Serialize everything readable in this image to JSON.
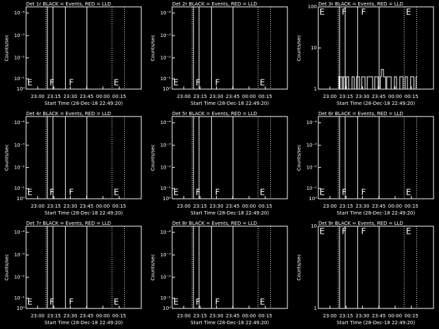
{
  "chart_data": [
    {
      "type": "line",
      "title": "Det 1r BLACK = Events, RED = LLD",
      "ylabel": "Counts/sec",
      "xlabel": "Start Time (28-Dec-18 22:49:20)",
      "xlim": [
        0,
        106
      ],
      "xticks": [
        {
          "value": 10.67,
          "label": "23:00"
        },
        {
          "value": 25.67,
          "label": "23:15"
        },
        {
          "value": 40.67,
          "label": "23:30"
        },
        {
          "value": 55.67,
          "label": "23:45"
        },
        {
          "value": 70.67,
          "label": "00:00"
        },
        {
          "value": 85.67,
          "label": "00:15"
        }
      ],
      "ylim": [
        0,
        1
      ],
      "yticks": [
        {
          "value": 0,
          "label": "10⁰"
        },
        {
          "value": 0.125,
          "label": "10⁻¹"
        },
        {
          "value": 0.38,
          "label": "10⁻²"
        },
        {
          "value": 0.65,
          "label": "10⁻³"
        },
        {
          "value": 0.925,
          "label": "10⁻⁴"
        }
      ],
      "log": false,
      "annotation_row": "bottom",
      "vlines": [
        {
          "x": 18.3,
          "style": "dotted"
        },
        {
          "x": 19.6,
          "style": "solid"
        },
        {
          "x": 24.7,
          "style": "solid"
        },
        {
          "x": 36.2,
          "style": "solid"
        },
        {
          "x": 56,
          "style": "solid"
        },
        {
          "x": 79,
          "style": "dotted"
        },
        {
          "x": 90.5,
          "style": "dotted"
        }
      ],
      "annotations": [
        {
          "x": 0.5,
          "text": "E"
        },
        {
          "x": 21,
          "text": "F"
        },
        {
          "x": 38.8,
          "text": "F"
        },
        {
          "x": 80,
          "text": "E"
        }
      ]
    },
    {
      "type": "line",
      "title": "Det 2r BLACK = Events, RED = LLD",
      "ylabel": "Counts/sec",
      "xlabel": "Start Time (28-Dec-18 22:49:20)",
      "xlim": [
        0,
        106
      ],
      "xticks": [
        {
          "value": 10.67,
          "label": "23:00"
        },
        {
          "value": 25.67,
          "label": "23:15"
        },
        {
          "value": 40.67,
          "label": "23:30"
        },
        {
          "value": 55.67,
          "label": "23:45"
        },
        {
          "value": 70.67,
          "label": "00:00"
        },
        {
          "value": 85.67,
          "label": "00:15"
        }
      ],
      "ylim": [
        0,
        1
      ],
      "yticks": [
        {
          "value": 0,
          "label": "10⁰"
        },
        {
          "value": 0.125,
          "label": "10⁻¹"
        },
        {
          "value": 0.38,
          "label": "10⁻²"
        },
        {
          "value": 0.65,
          "label": "10⁻³"
        },
        {
          "value": 0.925,
          "label": "10⁻⁴"
        }
      ],
      "log": false,
      "annotation_row": "bottom",
      "vlines": [
        {
          "x": 18.3,
          "style": "dotted"
        },
        {
          "x": 19.6,
          "style": "solid"
        },
        {
          "x": 24.7,
          "style": "solid"
        },
        {
          "x": 36.2,
          "style": "solid"
        },
        {
          "x": 56,
          "style": "solid"
        },
        {
          "x": 79,
          "style": "dotted"
        },
        {
          "x": 90.5,
          "style": "dotted"
        }
      ],
      "annotations": [
        {
          "x": 0.5,
          "text": "E"
        },
        {
          "x": 21,
          "text": "F"
        },
        {
          "x": 38.8,
          "text": "F"
        },
        {
          "x": 80,
          "text": "E"
        }
      ]
    },
    {
      "type": "line",
      "title": "Det 3r BLACK = Events, RED = LLD",
      "ylabel": "Counts/sec",
      "xlabel": "Start Time (28-Dec-18 22:49:20)",
      "xlim": [
        0,
        106
      ],
      "xticks": [
        {
          "value": 10.67,
          "label": "23:00"
        },
        {
          "value": 25.67,
          "label": "23:15"
        },
        {
          "value": 40.67,
          "label": "23:30"
        },
        {
          "value": 55.67,
          "label": "23:45"
        },
        {
          "value": 70.67,
          "label": "00:00"
        },
        {
          "value": 85.67,
          "label": "00:15"
        }
      ],
      "ylim": [
        1,
        100
      ],
      "yticks": [
        1,
        10,
        100
      ],
      "log": true,
      "annotation_row": "top",
      "vlines": [
        {
          "x": 18.3,
          "style": "dotted"
        },
        {
          "x": 19.6,
          "style": "solid"
        },
        {
          "x": 24.7,
          "style": "solid"
        },
        {
          "x": 36.2,
          "style": "solid"
        },
        {
          "x": 56,
          "style": "solid"
        },
        {
          "x": 79,
          "style": "dotted"
        },
        {
          "x": 90.5,
          "style": "dotted"
        }
      ],
      "annotations": [
        {
          "x": 0.5,
          "text": "E"
        },
        {
          "x": 21,
          "text": "F"
        },
        {
          "x": 38.8,
          "text": "F"
        },
        {
          "x": 80,
          "text": "E"
        }
      ],
      "series": [
        {
          "color": "#ffffff",
          "x": [
            18,
            19,
            20,
            22,
            23,
            25,
            26,
            28,
            30,
            31,
            33,
            35,
            36,
            38,
            40,
            42,
            43,
            45,
            47,
            48,
            50,
            52,
            53,
            55,
            57,
            58,
            60,
            62,
            63,
            65,
            67,
            70,
            72,
            75,
            78,
            80,
            82,
            85,
            88,
            90
          ],
          "values": [
            2,
            1,
            2,
            1,
            2,
            1,
            2,
            1,
            1,
            2,
            1,
            2,
            2,
            1,
            2,
            2,
            1,
            2,
            2,
            2,
            1,
            2,
            2,
            1,
            2,
            3,
            2,
            1,
            2,
            2,
            1,
            2,
            1,
            2,
            1,
            2,
            1,
            2,
            1,
            2
          ]
        }
      ]
    },
    {
      "type": "line",
      "title": "Det 4r BLACK = Events, RED = LLD",
      "ylabel": "Counts/sec",
      "xlabel": "Start Time (28-Dec-18 22:49:20)",
      "xlim": [
        0,
        106
      ],
      "xticks": [
        {
          "value": 10.67,
          "label": "23:00"
        },
        {
          "value": 25.67,
          "label": "23:15"
        },
        {
          "value": 40.67,
          "label": "23:30"
        },
        {
          "value": 55.67,
          "label": "23:45"
        },
        {
          "value": 70.67,
          "label": "00:00"
        },
        {
          "value": 85.67,
          "label": "00:15"
        }
      ],
      "ylim": [
        0,
        1
      ],
      "yticks": [
        {
          "value": 0,
          "label": "10⁰"
        },
        {
          "value": 0.125,
          "label": "10⁻¹"
        },
        {
          "value": 0.38,
          "label": "10⁻²"
        },
        {
          "value": 0.65,
          "label": "10⁻³"
        },
        {
          "value": 0.925,
          "label": "10⁻⁴"
        }
      ],
      "log": false,
      "annotation_row": "bottom",
      "vlines": [
        {
          "x": 18.3,
          "style": "dotted"
        },
        {
          "x": 19.6,
          "style": "solid"
        },
        {
          "x": 24.7,
          "style": "solid"
        },
        {
          "x": 36.2,
          "style": "solid"
        },
        {
          "x": 56,
          "style": "solid"
        },
        {
          "x": 79,
          "style": "dotted"
        },
        {
          "x": 90.5,
          "style": "dotted"
        }
      ],
      "annotations": [
        {
          "x": 0.5,
          "text": "E"
        },
        {
          "x": 21,
          "text": "F"
        },
        {
          "x": 38.8,
          "text": "F"
        },
        {
          "x": 80,
          "text": "E"
        }
      ]
    },
    {
      "type": "line",
      "title": "Det 5r BLACK = Events, RED = LLD",
      "ylabel": "Counts/sec",
      "xlabel": "Start Time (28-Dec-18 22:49:20)",
      "xlim": [
        0,
        106
      ],
      "xticks": [
        {
          "value": 10.67,
          "label": "23:00"
        },
        {
          "value": 25.67,
          "label": "23:15"
        },
        {
          "value": 40.67,
          "label": "23:30"
        },
        {
          "value": 55.67,
          "label": "23:45"
        },
        {
          "value": 70.67,
          "label": "00:00"
        },
        {
          "value": 85.67,
          "label": "00:15"
        }
      ],
      "ylim": [
        0,
        1
      ],
      "yticks": [
        {
          "value": 0,
          "label": "10⁰"
        },
        {
          "value": 0.125,
          "label": "10⁻¹"
        },
        {
          "value": 0.38,
          "label": "10⁻²"
        },
        {
          "value": 0.65,
          "label": "10⁻³"
        },
        {
          "value": 0.925,
          "label": "10⁻⁴"
        }
      ],
      "log": false,
      "annotation_row": "bottom",
      "vlines": [
        {
          "x": 18.3,
          "style": "dotted"
        },
        {
          "x": 19.6,
          "style": "solid"
        },
        {
          "x": 24.7,
          "style": "solid"
        },
        {
          "x": 36.2,
          "style": "solid"
        },
        {
          "x": 56,
          "style": "solid"
        },
        {
          "x": 79,
          "style": "dotted"
        },
        {
          "x": 90.5,
          "style": "dotted"
        }
      ],
      "annotations": [
        {
          "x": 0.5,
          "text": "E"
        },
        {
          "x": 21,
          "text": "F"
        },
        {
          "x": 38.8,
          "text": "F"
        },
        {
          "x": 80,
          "text": "E"
        }
      ]
    },
    {
      "type": "line",
      "title": "Det 6r BLACK = Events, RED = LLD",
      "ylabel": "Counts/sec",
      "xlabel": "Start Time (28-Dec-18 22:49:20)",
      "xlim": [
        0,
        106
      ],
      "xticks": [
        {
          "value": 10.67,
          "label": "23:00"
        },
        {
          "value": 25.67,
          "label": "23:15"
        },
        {
          "value": 40.67,
          "label": "23:30"
        },
        {
          "value": 55.67,
          "label": "23:45"
        },
        {
          "value": 70.67,
          "label": "00:00"
        },
        {
          "value": 85.67,
          "label": "00:15"
        }
      ],
      "ylim": [
        0,
        1
      ],
      "yticks": [
        {
          "value": 0,
          "label": "10⁰"
        },
        {
          "value": 0.125,
          "label": "10⁻¹"
        },
        {
          "value": 0.38,
          "label": "10⁻²"
        },
        {
          "value": 0.65,
          "label": "10⁻³"
        },
        {
          "value": 0.925,
          "label": "10⁻⁴"
        }
      ],
      "log": false,
      "annotation_row": "bottom",
      "vlines": [
        {
          "x": 18.3,
          "style": "dotted"
        },
        {
          "x": 19.6,
          "style": "solid"
        },
        {
          "x": 24.7,
          "style": "solid"
        },
        {
          "x": 36.2,
          "style": "solid"
        },
        {
          "x": 56,
          "style": "solid"
        },
        {
          "x": 79,
          "style": "dotted"
        },
        {
          "x": 90.5,
          "style": "dotted"
        }
      ],
      "annotations": [
        {
          "x": 0.5,
          "text": "E"
        },
        {
          "x": 21,
          "text": "F"
        },
        {
          "x": 38.8,
          "text": "F"
        },
        {
          "x": 80,
          "text": "E"
        }
      ]
    },
    {
      "type": "line",
      "title": "Det 7r BLACK = Events, RED = LLD",
      "ylabel": "Counts/sec",
      "xlabel": "Start Time (28-Dec-18 22:49:20)",
      "xlim": [
        0,
        106
      ],
      "xticks": [
        {
          "value": 10.67,
          "label": "23:00"
        },
        {
          "value": 25.67,
          "label": "23:15"
        },
        {
          "value": 40.67,
          "label": "23:30"
        },
        {
          "value": 55.67,
          "label": "23:45"
        },
        {
          "value": 70.67,
          "label": "00:00"
        },
        {
          "value": 85.67,
          "label": "00:15"
        }
      ],
      "ylim": [
        0,
        1
      ],
      "yticks": [
        {
          "value": 0,
          "label": "10⁰"
        },
        {
          "value": 0.125,
          "label": "10⁻¹"
        },
        {
          "value": 0.38,
          "label": "10⁻²"
        },
        {
          "value": 0.65,
          "label": "10⁻³"
        },
        {
          "value": 0.925,
          "label": "10⁻⁴"
        }
      ],
      "log": false,
      "annotation_row": "bottom",
      "vlines": [
        {
          "x": 18.3,
          "style": "dotted"
        },
        {
          "x": 19.6,
          "style": "solid"
        },
        {
          "x": 24.7,
          "style": "solid"
        },
        {
          "x": 36.2,
          "style": "solid"
        },
        {
          "x": 56,
          "style": "solid"
        },
        {
          "x": 79,
          "style": "dotted"
        },
        {
          "x": 90.5,
          "style": "dotted"
        }
      ],
      "annotations": [
        {
          "x": 0.5,
          "text": "E"
        },
        {
          "x": 21,
          "text": "F"
        },
        {
          "x": 38.8,
          "text": "F"
        },
        {
          "x": 80,
          "text": "E"
        }
      ]
    },
    {
      "type": "line",
      "title": "Det 8r BLACK = Events, RED = LLD",
      "ylabel": "Counts/sec",
      "xlabel": "Start Time (28-Dec-18 22:49:20)",
      "xlim": [
        0,
        106
      ],
      "xticks": [
        {
          "value": 10.67,
          "label": "23:00"
        },
        {
          "value": 25.67,
          "label": "23:15"
        },
        {
          "value": 40.67,
          "label": "23:30"
        },
        {
          "value": 55.67,
          "label": "23:45"
        },
        {
          "value": 70.67,
          "label": "00:00"
        },
        {
          "value": 85.67,
          "label": "00:15"
        }
      ],
      "ylim": [
        0,
        1
      ],
      "yticks": [
        {
          "value": 0,
          "label": "10⁰"
        },
        {
          "value": 0.125,
          "label": "10⁻¹"
        },
        {
          "value": 0.38,
          "label": "10⁻²"
        },
        {
          "value": 0.65,
          "label": "10⁻³"
        },
        {
          "value": 0.925,
          "label": "10⁻⁴"
        }
      ],
      "log": false,
      "annotation_row": "bottom",
      "vlines": [
        {
          "x": 18.3,
          "style": "dotted"
        },
        {
          "x": 19.6,
          "style": "solid"
        },
        {
          "x": 24.7,
          "style": "solid"
        },
        {
          "x": 36.2,
          "style": "solid"
        },
        {
          "x": 56,
          "style": "solid"
        },
        {
          "x": 79,
          "style": "dotted"
        },
        {
          "x": 90.5,
          "style": "dotted"
        }
      ],
      "annotations": [
        {
          "x": 0.5,
          "text": "E"
        },
        {
          "x": 21,
          "text": "F"
        },
        {
          "x": 38.8,
          "text": "F"
        },
        {
          "x": 80,
          "text": "E"
        }
      ]
    },
    {
      "type": "line",
      "title": "Det 9r BLACK = Events, RED = LLD",
      "ylabel": "Counts/sec",
      "xlabel": "Start Time (28-Dec-18 22:49:20)",
      "xlim": [
        0,
        106
      ],
      "xticks": [
        {
          "value": 10.67,
          "label": "23:00"
        },
        {
          "value": 25.67,
          "label": "23:15"
        },
        {
          "value": 40.67,
          "label": "23:30"
        },
        {
          "value": 55.67,
          "label": "23:45"
        },
        {
          "value": 70.67,
          "label": "00:00"
        },
        {
          "value": 85.67,
          "label": "00:15"
        }
      ],
      "ylim": [
        1,
        10
      ],
      "yticks": [
        1,
        10
      ],
      "log": true,
      "annotation_row": "top",
      "vlines": [
        {
          "x": 18.3,
          "style": "dotted"
        },
        {
          "x": 19.6,
          "style": "solid"
        },
        {
          "x": 24.7,
          "style": "solid"
        },
        {
          "x": 36.2,
          "style": "solid"
        },
        {
          "x": 56,
          "style": "solid"
        },
        {
          "x": 79,
          "style": "dotted"
        },
        {
          "x": 90.5,
          "style": "dotted"
        }
      ],
      "annotations": [
        {
          "x": 0.5,
          "text": "E"
        },
        {
          "x": 21,
          "text": "F"
        },
        {
          "x": 38.8,
          "text": "F"
        },
        {
          "x": 80,
          "text": "E"
        }
      ]
    }
  ]
}
